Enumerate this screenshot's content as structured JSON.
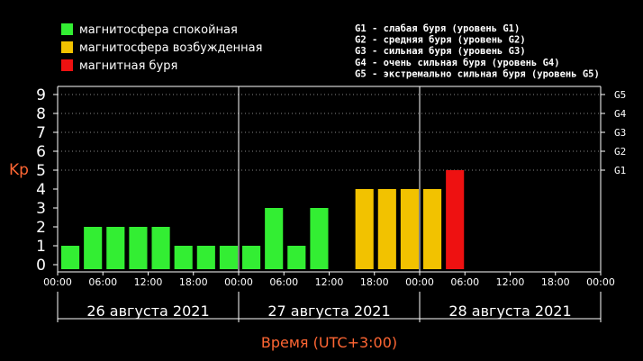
{
  "colors": {
    "quiet": "#33ee33",
    "active": "#f2c200",
    "storm": "#ee1111",
    "axis_label": "#ff6633",
    "text": "#ffffff"
  },
  "chart_data": {
    "type": "bar",
    "title": "",
    "ylabel": "Kp",
    "xlabel": "Время (UTC+3:00)",
    "ylim": [
      0,
      9
    ],
    "yticks": [
      "0",
      "1",
      "2",
      "3",
      "4",
      "5",
      "6",
      "7",
      "8",
      "9"
    ],
    "g_levels": [
      {
        "label": "G1",
        "kp": 5
      },
      {
        "label": "G2",
        "kp": 6
      },
      {
        "label": "G3",
        "kp": 7
      },
      {
        "label": "G4",
        "kp": 8
      },
      {
        "label": "G5",
        "kp": 9
      }
    ],
    "xtick_labels": [
      "00:00",
      "06:00",
      "12:00",
      "18:00",
      "00:00",
      "06:00",
      "12:00",
      "18:00",
      "00:00",
      "06:00",
      "12:00",
      "18:00",
      "00:00"
    ],
    "days": [
      "26 августа 2021",
      "27 августа 2021",
      "28 августа 2021"
    ],
    "intervals_per_day": 8,
    "values": [
      1,
      2,
      2,
      2,
      2,
      1,
      1,
      1,
      1,
      3,
      1,
      3,
      null,
      4,
      4,
      4,
      4,
      5,
      null,
      null,
      null,
      null,
      null,
      null
    ],
    "legend": [
      {
        "label": "магнитосфера спокойная",
        "color_key": "quiet"
      },
      {
        "label": "магнитосфера возбужденная",
        "color_key": "active"
      },
      {
        "label": "магнитная буря",
        "color_key": "storm"
      }
    ],
    "g_legend": [
      "G1 - слабая буря (уровень G1)",
      "G2 - средняя буря (уровень G2)",
      "G3 - сильная буря (уровень G3)",
      "G4 - очень сильная буря (уровень G4)",
      "G5 - экстремально сильная буря (уровень G5)"
    ]
  }
}
